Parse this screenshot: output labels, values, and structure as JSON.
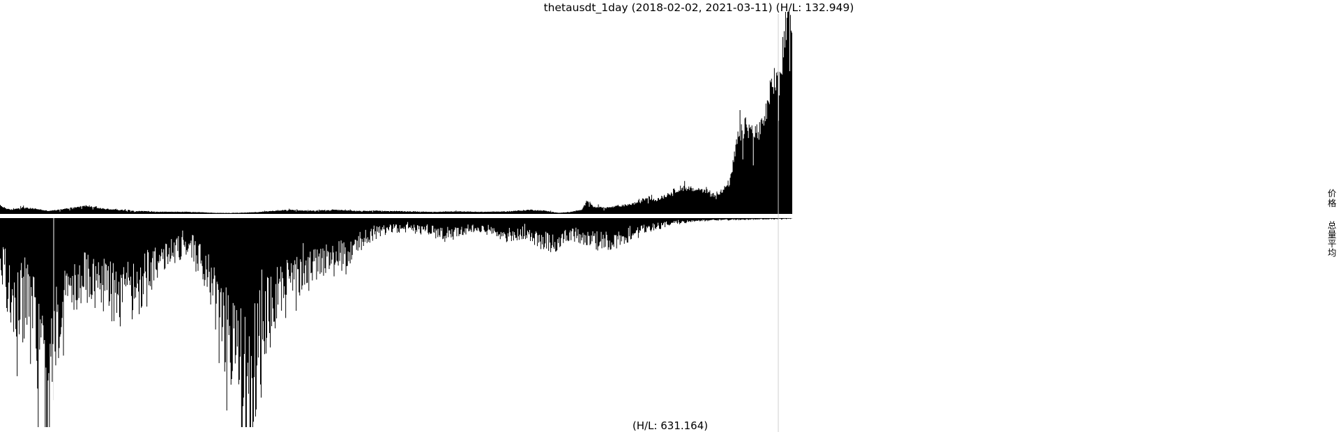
{
  "chart_data": {
    "type": "area",
    "title": "thetausdt_1day (2018-02-02, 2021-03-11) (H/L: 132.949)",
    "x_range": [
      "2018-02-02",
      "2021-03-11"
    ],
    "legend": [
      "价",
      "格",
      "总",
      "量",
      "平",
      "均"
    ],
    "series": [
      {
        "name": "价格",
        "panel": "upper",
        "ratio_hl": 132.949,
        "relative_shape_anchors": [
          [
            0.0,
            0.04
          ],
          [
            0.012,
            0.02
          ],
          [
            0.028,
            0.03
          ],
          [
            0.045,
            0.025
          ],
          [
            0.06,
            0.015
          ],
          [
            0.075,
            0.02
          ],
          [
            0.09,
            0.03
          ],
          [
            0.11,
            0.04
          ],
          [
            0.13,
            0.025
          ],
          [
            0.15,
            0.02
          ],
          [
            0.17,
            0.015
          ],
          [
            0.2,
            0.01
          ],
          [
            0.24,
            0.01
          ],
          [
            0.27,
            0.005
          ],
          [
            0.3,
            0.005
          ],
          [
            0.33,
            0.01
          ],
          [
            0.36,
            0.02
          ],
          [
            0.39,
            0.015
          ],
          [
            0.42,
            0.02
          ],
          [
            0.45,
            0.015
          ],
          [
            0.48,
            0.015
          ],
          [
            0.52,
            0.012
          ],
          [
            0.55,
            0.01
          ],
          [
            0.58,
            0.012
          ],
          [
            0.61,
            0.01
          ],
          [
            0.64,
            0.012
          ],
          [
            0.67,
            0.02
          ],
          [
            0.69,
            0.015
          ],
          [
            0.705,
            0.005
          ],
          [
            0.72,
            0.01
          ],
          [
            0.735,
            0.02
          ],
          [
            0.742,
            0.07
          ],
          [
            0.75,
            0.035
          ],
          [
            0.765,
            0.03
          ],
          [
            0.785,
            0.04
          ],
          [
            0.8,
            0.05
          ],
          [
            0.818,
            0.08
          ],
          [
            0.83,
            0.07
          ],
          [
            0.845,
            0.1
          ],
          [
            0.86,
            0.13
          ],
          [
            0.875,
            0.12
          ],
          [
            0.888,
            0.12
          ],
          [
            0.9,
            0.1
          ],
          [
            0.912,
            0.11
          ],
          [
            0.922,
            0.16
          ],
          [
            0.932,
            0.38
          ],
          [
            0.942,
            0.43
          ],
          [
            0.95,
            0.41
          ],
          [
            0.958,
            0.4
          ],
          [
            0.965,
            0.45
          ],
          [
            0.972,
            0.58
          ],
          [
            0.978,
            0.68
          ],
          [
            0.984,
            0.62
          ],
          [
            0.99,
            0.85
          ],
          [
            0.995,
            0.95
          ],
          [
            1.0,
            1.0
          ]
        ]
      },
      {
        "name": "总量平均",
        "panel": "lower",
        "ratio_hl": 631.164,
        "relative_shape_anchors": [
          [
            0.0,
            0.18
          ],
          [
            0.012,
            0.4
          ],
          [
            0.025,
            0.45
          ],
          [
            0.035,
            0.38
          ],
          [
            0.045,
            0.55
          ],
          [
            0.055,
            0.7
          ],
          [
            0.062,
            0.92
          ],
          [
            0.07,
            0.6
          ],
          [
            0.085,
            0.4
          ],
          [
            0.1,
            0.28
          ],
          [
            0.12,
            0.3
          ],
          [
            0.14,
            0.35
          ],
          [
            0.16,
            0.38
          ],
          [
            0.18,
            0.3
          ],
          [
            0.2,
            0.2
          ],
          [
            0.22,
            0.15
          ],
          [
            0.24,
            0.12
          ],
          [
            0.26,
            0.25
          ],
          [
            0.275,
            0.5
          ],
          [
            0.29,
            0.6
          ],
          [
            0.305,
            0.75
          ],
          [
            0.315,
            0.93
          ],
          [
            0.325,
            0.6
          ],
          [
            0.34,
            0.45
          ],
          [
            0.355,
            0.38
          ],
          [
            0.37,
            0.3
          ],
          [
            0.385,
            0.25
          ],
          [
            0.4,
            0.22
          ],
          [
            0.42,
            0.2
          ],
          [
            0.44,
            0.16
          ],
          [
            0.46,
            0.1
          ],
          [
            0.48,
            0.06
          ],
          [
            0.5,
            0.05
          ],
          [
            0.52,
            0.05
          ],
          [
            0.54,
            0.06
          ],
          [
            0.56,
            0.08
          ],
          [
            0.58,
            0.06
          ],
          [
            0.6,
            0.05
          ],
          [
            0.62,
            0.06
          ],
          [
            0.64,
            0.08
          ],
          [
            0.66,
            0.07
          ],
          [
            0.68,
            0.1
          ],
          [
            0.695,
            0.13
          ],
          [
            0.71,
            0.09
          ],
          [
            0.725,
            0.08
          ],
          [
            0.74,
            0.1
          ],
          [
            0.76,
            0.11
          ],
          [
            0.775,
            0.11
          ],
          [
            0.79,
            0.09
          ],
          [
            0.81,
            0.06
          ],
          [
            0.83,
            0.04
          ],
          [
            0.845,
            0.025
          ],
          [
            0.86,
            0.02
          ],
          [
            0.88,
            0.012
          ],
          [
            0.9,
            0.01
          ],
          [
            0.92,
            0.008
          ],
          [
            0.95,
            0.006
          ],
          [
            0.97,
            0.005
          ],
          [
            0.985,
            0.004
          ],
          [
            1.0,
            0.003
          ]
        ]
      }
    ],
    "annotations": [
      "(H/L: 631.164)"
    ],
    "grid": false,
    "legend_placement": "right"
  }
}
